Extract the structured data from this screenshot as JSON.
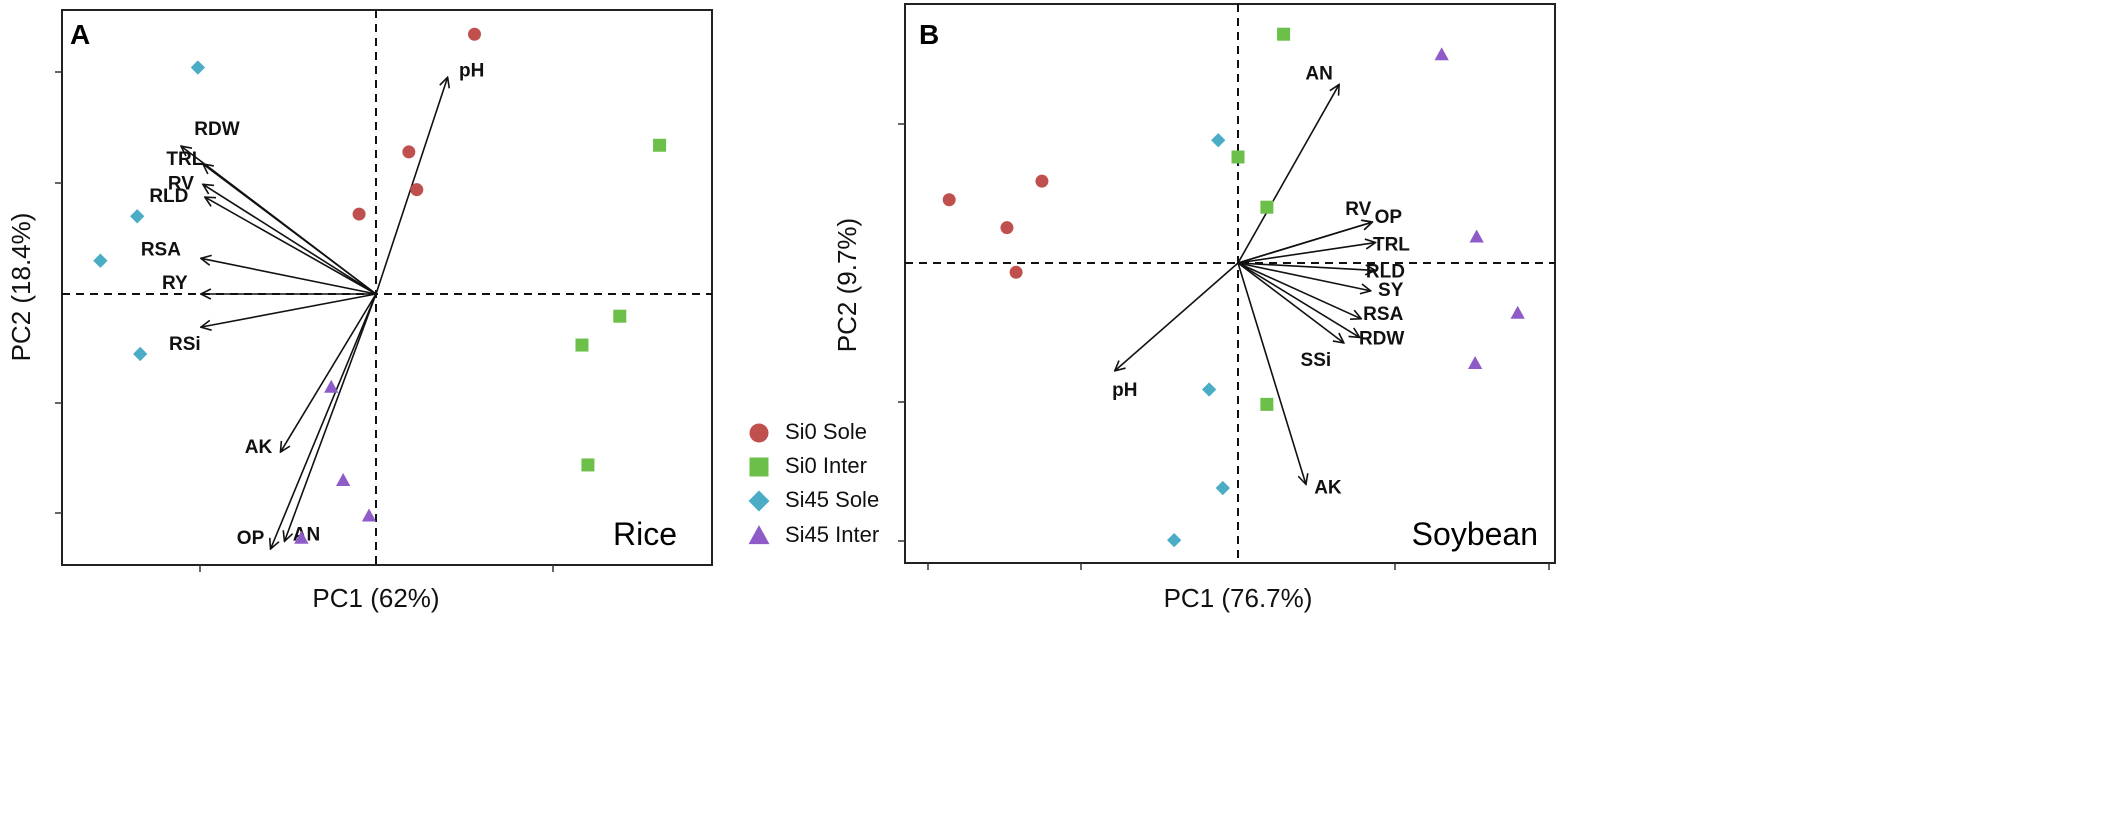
{
  "chart_data": [
    {
      "type": "scatter",
      "subtype": "pca-biplot",
      "panel_label": "A",
      "crop": "Rice",
      "xlabel": "PC1 (62%)",
      "ylabel": "PC2 (18.4%)",
      "xlim": [
        -1.5,
        1.5
      ],
      "ylim": [
        -1.25,
        1.25
      ],
      "grid": false,
      "zero_lines": true,
      "series": [
        {
          "name": "Si0 Sole",
          "color": "#c0504d",
          "marker": "circle",
          "points": [
            [
              0.495,
              1.17
            ],
            [
              0.165,
              0.64
            ],
            [
              0.205,
              0.47
            ],
            [
              -0.085,
              0.36
            ]
          ]
        },
        {
          "name": "Si0 Inter",
          "color": "#6cc04a",
          "marker": "square",
          "points": [
            [
              1.425,
              0.67
            ],
            [
              1.225,
              -0.1
            ],
            [
              1.035,
              -0.23
            ],
            [
              1.065,
              -0.77
            ]
          ]
        },
        {
          "name": "Si45 Sole",
          "color": "#4bacc6",
          "marker": "diamond",
          "points": [
            [
              -0.895,
              1.02
            ],
            [
              -1.2,
              0.35
            ],
            [
              -1.385,
              0.15
            ],
            [
              -1.185,
              -0.27
            ]
          ]
        },
        {
          "name": "Si45 Inter",
          "color": "#8e5bc9",
          "marker": "triangle",
          "points": [
            [
              -0.225,
              -0.42
            ],
            [
              -0.165,
              -0.84
            ],
            [
              -0.035,
              -1.0
            ],
            [
              -0.375,
              -1.1
            ]
          ]
        }
      ],
      "loadings": [
        {
          "name": "pH",
          "x": 0.36,
          "y": 0.85
        },
        {
          "name": "RDW",
          "x": -0.98,
          "y": 0.58
        },
        {
          "name": "TRL",
          "x": -0.87,
          "y": 0.51
        },
        {
          "name": "RV",
          "x": -0.87,
          "y": 0.43
        },
        {
          "name": "RLD",
          "x": -0.86,
          "y": 0.38
        },
        {
          "name": "RSA",
          "x": -0.88,
          "y": 0.14
        },
        {
          "name": "RY",
          "x": -0.88,
          "y": 0.0
        },
        {
          "name": "RSi",
          "x": -0.88,
          "y": -0.13
        },
        {
          "name": "AK",
          "x": -0.48,
          "y": -0.62
        },
        {
          "name": "OP",
          "x": -0.53,
          "y": -1.0
        },
        {
          "name": "AN",
          "x": -0.46,
          "y": -0.97
        }
      ]
    },
    {
      "type": "scatter",
      "subtype": "pca-biplot",
      "panel_label": "B",
      "crop": "Soybean",
      "xlabel": "PC1 (76.7%)",
      "ylabel": "PC2 (9.7%)",
      "xlim": [
        -2.0,
        2.0
      ],
      "ylim": [
        -1.5,
        1.5
      ],
      "grid": false,
      "zero_lines": true,
      "series": [
        {
          "name": "Si0 Sole",
          "color": "#c0504d",
          "marker": "circle",
          "points": [
            [
              -1.9,
              0.34
            ],
            [
              -1.29,
              0.44
            ],
            [
              -1.52,
              0.19
            ],
            [
              -1.46,
              -0.05
            ]
          ]
        },
        {
          "name": "Si0 Inter",
          "color": "#6cc04a",
          "marker": "square",
          "points": [
            [
              0.3,
              1.23
            ],
            [
              0.0,
              0.57
            ],
            [
              0.19,
              0.3
            ],
            [
              0.19,
              -0.76
            ]
          ]
        },
        {
          "name": "Si45 Sole",
          "color": "#4bacc6",
          "marker": "diamond",
          "points": [
            [
              -0.13,
              0.66
            ],
            [
              -0.19,
              -0.68
            ],
            [
              -0.1,
              -1.21
            ],
            [
              -0.42,
              -1.49
            ]
          ]
        },
        {
          "name": "Si45 Inter",
          "color": "#8e5bc9",
          "marker": "triangle",
          "points": [
            [
              1.34,
              1.12
            ],
            [
              1.57,
              0.14
            ],
            [
              1.84,
              -0.27
            ],
            [
              1.56,
              -0.54
            ]
          ]
        }
      ],
      "loadings": [
        {
          "name": "AN",
          "x": 0.64,
          "y": 0.96
        },
        {
          "name": "RV",
          "x": 0.85,
          "y": 0.22
        },
        {
          "name": "OP",
          "x": 0.85,
          "y": 0.22
        },
        {
          "name": "TRL",
          "x": 0.87,
          "y": 0.11
        },
        {
          "name": "RLD",
          "x": 0.87,
          "y": -0.04
        },
        {
          "name": "SY",
          "x": 0.84,
          "y": -0.15
        },
        {
          "name": "RSA",
          "x": 0.78,
          "y": -0.3
        },
        {
          "name": "RDW",
          "x": 0.77,
          "y": -0.4
        },
        {
          "name": "SSi",
          "x": 0.67,
          "y": -0.43
        },
        {
          "name": "pH",
          "x": -0.78,
          "y": -0.58
        },
        {
          "name": "AK",
          "x": 0.43,
          "y": -1.19
        }
      ]
    }
  ],
  "legend": {
    "placement": "between-panels",
    "items": [
      {
        "label": "Si0 Sole",
        "color": "#c0504d",
        "marker": "circle"
      },
      {
        "label": "Si0 Inter",
        "color": "#6cc04a",
        "marker": "square"
      },
      {
        "label": "Si45 Sole",
        "color": "#4bacc6",
        "marker": "diamond"
      },
      {
        "label": "Si45 Inter",
        "color": "#8e5bc9",
        "marker": "triangle"
      }
    ]
  }
}
